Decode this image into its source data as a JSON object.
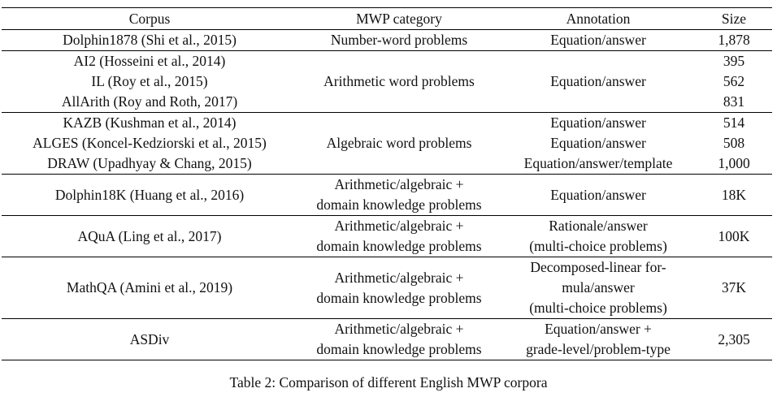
{
  "table": {
    "headers": [
      "Corpus",
      "MWP category",
      "Annotation",
      "Size"
    ],
    "groups": [
      {
        "category": [
          "Number-word problems"
        ],
        "rows": [
          {
            "corpus": "Dolphin1878 (Shi et al., 2015)",
            "annotation": [
              "Equation/answer"
            ],
            "size": "1,878"
          }
        ],
        "shared_annotation": false
      },
      {
        "category": [
          "Arithmetic word problems"
        ],
        "shared_annotation": true,
        "annotation": [
          "Equation/answer"
        ],
        "rows": [
          {
            "corpus": "AI2 (Hosseini et al., 2014)",
            "size": "395"
          },
          {
            "corpus": "IL (Roy et al., 2015)",
            "size": "562"
          },
          {
            "corpus": "AllArith (Roy and Roth, 2017)",
            "size": "831"
          }
        ]
      },
      {
        "category": [
          "Algebraic word problems"
        ],
        "shared_annotation": false,
        "rows": [
          {
            "corpus": "KAZB (Kushman et al., 2014)",
            "annotation": [
              "Equation/answer"
            ],
            "size": "514"
          },
          {
            "corpus": "ALGES (Koncel-Kedziorski et al., 2015)",
            "annotation": [
              "Equation/answer"
            ],
            "size": "508"
          },
          {
            "corpus": "DRAW (Upadhyay & Chang, 2015)",
            "annotation": [
              "Equation/answer/template"
            ],
            "size": "1,000"
          }
        ]
      },
      {
        "category": [
          "Arithmetic/algebraic +",
          "domain knowledge problems"
        ],
        "shared_annotation": false,
        "rows": [
          {
            "corpus": "Dolphin18K (Huang et al., 2016)",
            "annotation": [
              "Equation/answer"
            ],
            "size": "18K"
          }
        ]
      },
      {
        "category": [
          "Arithmetic/algebraic +",
          "domain knowledge problems"
        ],
        "shared_annotation": false,
        "rows": [
          {
            "corpus": "AQuA (Ling et al., 2017)",
            "annotation": [
              "Rationale/answer",
              "(multi-choice problems)"
            ],
            "size": "100K"
          }
        ]
      },
      {
        "category": [
          "Arithmetic/algebraic +",
          "domain knowledge problems"
        ],
        "shared_annotation": false,
        "rows": [
          {
            "corpus": "MathQA (Amini et al., 2019)",
            "annotation": [
              "Decomposed-linear for-",
              "mula/answer",
              "(multi-choice problems)"
            ],
            "size": "37K"
          }
        ]
      },
      {
        "category": [
          "Arithmetic/algebraic +",
          "domain knowledge problems"
        ],
        "shared_annotation": false,
        "rows": [
          {
            "corpus": "ASDiv",
            "annotation": [
              "Equation/answer +",
              "grade-level/problem-type"
            ],
            "size": "2,305"
          }
        ]
      }
    ]
  },
  "caption": "Table 2: Comparison of different English MWP corpora"
}
